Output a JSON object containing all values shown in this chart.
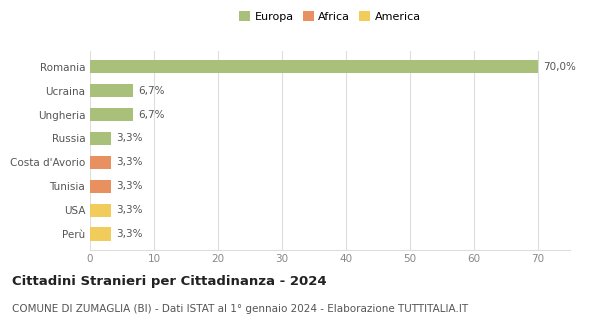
{
  "categories": [
    "Perù",
    "USA",
    "Tunisia",
    "Costa d'Avorio",
    "Russia",
    "Ungheria",
    "Ucraina",
    "Romania"
  ],
  "values": [
    3.3,
    3.3,
    3.3,
    3.3,
    3.3,
    6.7,
    6.7,
    70.0
  ],
  "labels": [
    "3,3%",
    "3,3%",
    "3,3%",
    "3,3%",
    "3,3%",
    "6,7%",
    "6,7%",
    "70,0%"
  ],
  "colors": [
    "#f2cc5a",
    "#f2cc5a",
    "#e89060",
    "#e89060",
    "#a8c07a",
    "#a8c07a",
    "#a8c07a",
    "#a8c07a"
  ],
  "legend": [
    {
      "label": "Europa",
      "color": "#a8c07a"
    },
    {
      "label": "Africa",
      "color": "#e89060"
    },
    {
      "label": "America",
      "color": "#f2cc5a"
    }
  ],
  "xlim": [
    0,
    75
  ],
  "xticks": [
    0,
    10,
    20,
    30,
    40,
    50,
    60,
    70
  ],
  "title": "Cittadini Stranieri per Cittadinanza - 2024",
  "subtitle": "COMUNE DI ZUMAGLIA (BI) - Dati ISTAT al 1° gennaio 2024 - Elaborazione TUTTITALIA.IT",
  "title_fontsize": 9.5,
  "subtitle_fontsize": 7.5,
  "background_color": "#ffffff",
  "grid_color": "#dddddd",
  "bar_height": 0.55
}
